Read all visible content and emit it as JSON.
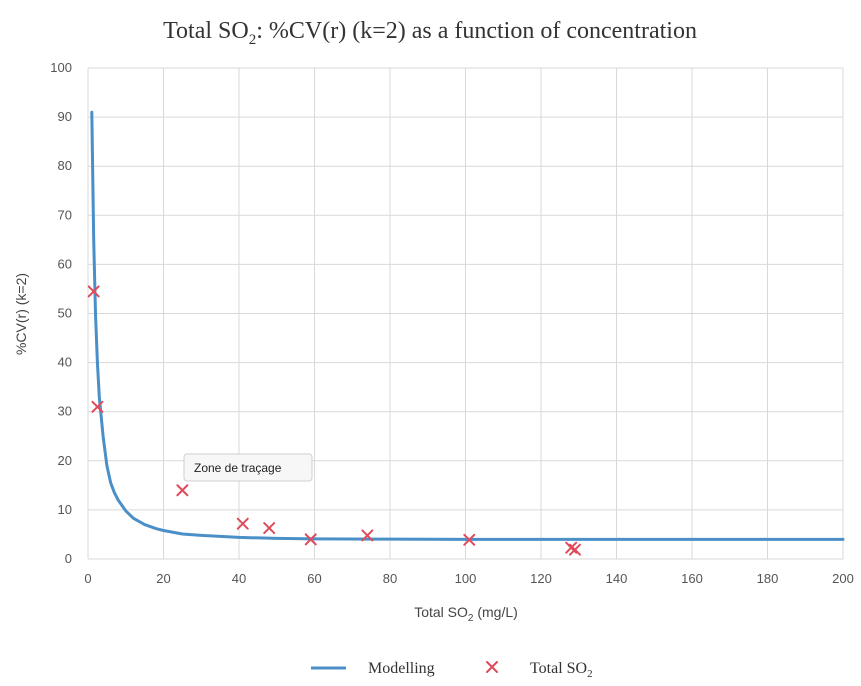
{
  "chart_data": {
    "type": "line+scatter",
    "title": {
      "main": "Total SO",
      "sub": "2",
      "rest": ": %CV(r) (k=2) as a function of concentration"
    },
    "xlabel": {
      "main": "Total SO",
      "sub": "2",
      "rest": " (mg/L)"
    },
    "ylabel": "%CV(r) (k=2)",
    "xlim": [
      0,
      200
    ],
    "ylim": [
      0,
      100
    ],
    "xticks": [
      "0",
      "20",
      "40",
      "60",
      "80",
      "100",
      "120",
      "140",
      "160",
      "180",
      "200"
    ],
    "yticks": [
      "0",
      "10",
      "20",
      "30",
      "40",
      "50",
      "60",
      "70",
      "80",
      "90",
      "100"
    ],
    "grid": true,
    "legend_position": "bottom",
    "tooltip": "Zone de traçage",
    "series": [
      {
        "name": "Modelling",
        "legend_main": "Modelling",
        "legend_sub": "",
        "kind": "line",
        "color": "#4a8fc7",
        "x": [
          1,
          1.5,
          2,
          2.5,
          3,
          4,
          5,
          6,
          7,
          8,
          10,
          12,
          15,
          18,
          20,
          25,
          30,
          35,
          40,
          50,
          60,
          80,
          100,
          120,
          150,
          200
        ],
        "y": [
          91,
          65,
          50,
          40,
          33,
          25,
          19,
          15.5,
          13.5,
          12,
          9.8,
          8.3,
          7,
          6.2,
          5.8,
          5.1,
          4.8,
          4.6,
          4.4,
          4.2,
          4.1,
          4.05,
          4,
          4,
          4,
          4
        ]
      },
      {
        "name": "Total SO2",
        "legend_main": "Total SO",
        "legend_sub": "2",
        "kind": "scatter",
        "marker": "x",
        "color": "#e04a5a",
        "x": [
          1.5,
          2.5,
          25,
          41,
          48,
          59,
          74,
          101,
          128,
          129
        ],
        "y": [
          54.5,
          31,
          14,
          7.2,
          6.3,
          4,
          4.8,
          3.9,
          2.3,
          1.9
        ]
      }
    ]
  }
}
